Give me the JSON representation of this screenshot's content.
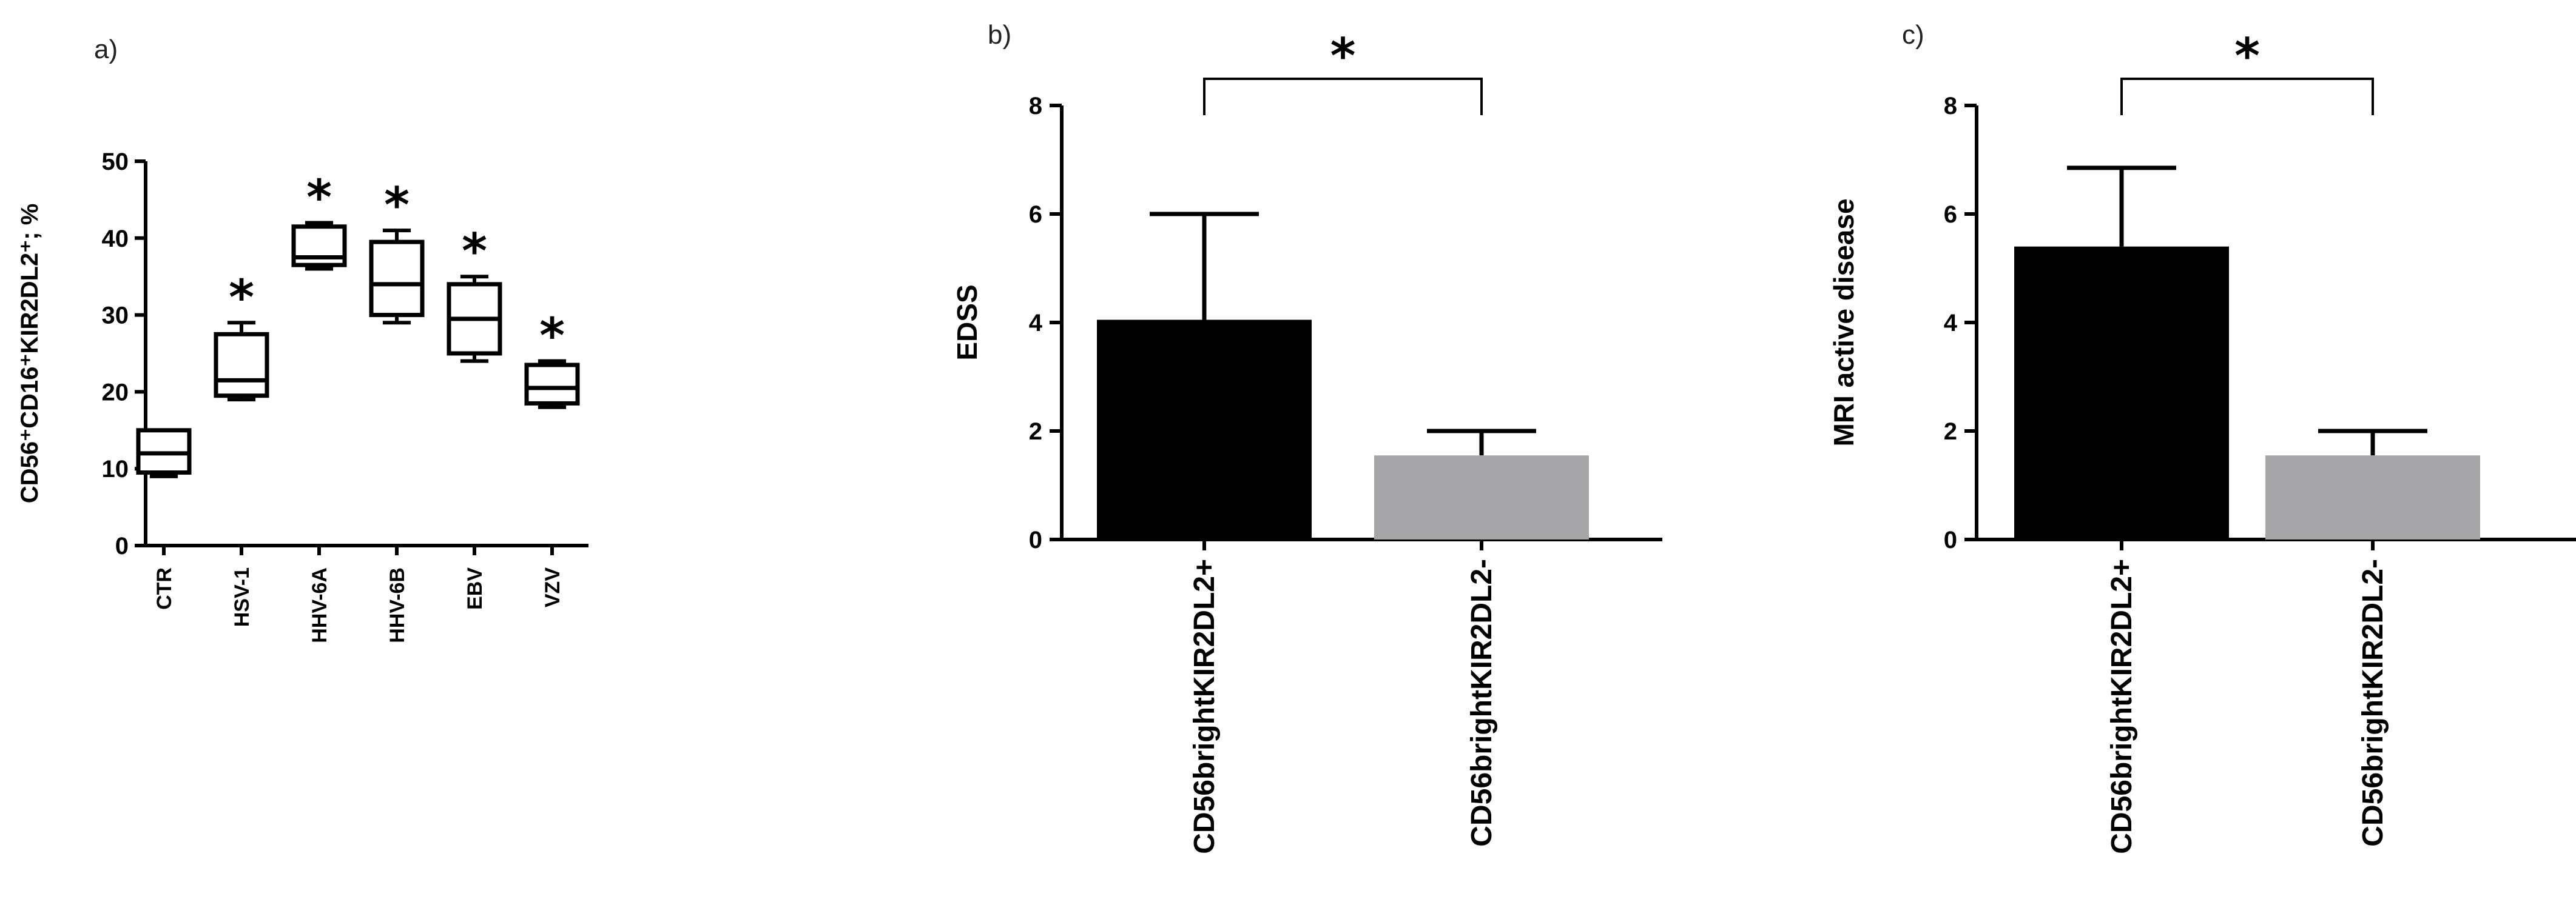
{
  "chart_data": [
    {
      "panel": "a)",
      "type": "box",
      "ylabel": "CD56⁺CD16⁺KIR2DL2⁺; %",
      "ylim": [
        0,
        50
      ],
      "yticks": [
        0,
        10,
        20,
        30,
        40,
        50
      ],
      "categories": [
        "CTR",
        "HSV-1",
        "HHV-6A",
        "HHV-6B",
        "EBV",
        "VZV"
      ],
      "boxes": [
        {
          "min": 9,
          "q1": 9.5,
          "median": 12,
          "q3": 15,
          "max": 15
        },
        {
          "min": 19,
          "q1": 19.5,
          "median": 21.5,
          "q3": 27.5,
          "max": 29
        },
        {
          "min": 36,
          "q1": 36.5,
          "median": 37.5,
          "q3": 41.5,
          "max": 42
        },
        {
          "min": 29,
          "q1": 30,
          "median": 34,
          "q3": 39.5,
          "max": 41
        },
        {
          "min": 24,
          "q1": 25,
          "median": 29.5,
          "q3": 34,
          "max": 35
        },
        {
          "min": 18,
          "q1": 18.5,
          "median": 20.5,
          "q3": 23.5,
          "max": 24
        }
      ],
      "significance": [
        "",
        "*",
        "*",
        "*",
        "*",
        "*"
      ]
    },
    {
      "panel": "b)",
      "type": "bar",
      "ylabel": "EDSS",
      "ylim": [
        0,
        8
      ],
      "yticks": [
        0,
        2,
        4,
        6,
        8
      ],
      "categories": [
        "CD56brightKIR2DL2+",
        "CD56brightKIR2DL2-"
      ],
      "values": [
        4.05,
        1.55
      ],
      "errors": [
        1.95,
        0.45
      ],
      "colors": [
        "#000000",
        "#a6a6a8"
      ],
      "significance_bracket": "*"
    },
    {
      "panel": "c)",
      "type": "bar",
      "ylabel": "MRI active disease",
      "ylim": [
        0,
        8
      ],
      "yticks": [
        0,
        2,
        4,
        6,
        8
      ],
      "categories": [
        "CD56brightKIR2DL2+",
        "CD56brightKIR2DL2-"
      ],
      "values": [
        5.4,
        1.55
      ],
      "errors": [
        1.45,
        0.45
      ],
      "colors": [
        "#000000",
        "#a6a6a8"
      ],
      "significance_bracket": "*"
    }
  ]
}
